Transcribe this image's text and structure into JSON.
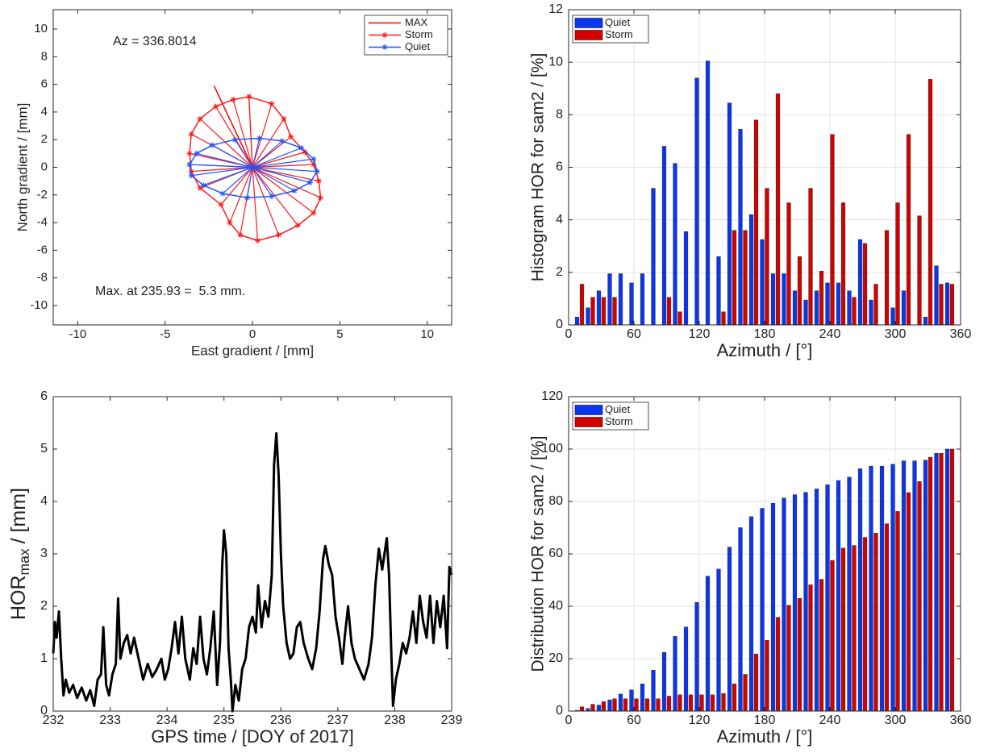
{
  "chart_data": [
    {
      "type": "line",
      "xlabel": "East gradient / [mm]",
      "ylabel": "North gradient / [mm]",
      "annotations": [
        "Az = 336.8014",
        "Max. at 235.93 =  5.3 mm."
      ],
      "xlim": [
        -11.4,
        11.4
      ],
      "ylim": [
        -11.4,
        11.4
      ],
      "xticks": [
        -10,
        -5,
        0,
        5,
        10
      ],
      "yticks": [
        -10,
        -8,
        -6,
        -4,
        -2,
        0,
        2,
        4,
        6,
        8,
        10
      ],
      "grid": false,
      "legend": "northeast",
      "spokes": true,
      "series": [
        {
          "name": "MAX",
          "color": "#ff0000",
          "x": [
            0,
            -2.2
          ],
          "values": [
            0,
            5.9
          ]
        },
        {
          "name": "Storm",
          "color": "#ff1a1a",
          "marker": "*",
          "x": [
            -0.2,
            1.1,
            1.8,
            2.2,
            3.0,
            3.5,
            3.8,
            3.9,
            3.5,
            2.6,
            1.5,
            0.3,
            -0.7,
            -1.3,
            -1.8,
            -3.0,
            -3.5,
            -3.6,
            -3.5,
            -3.0,
            -2.1,
            -1.1,
            -0.2
          ],
          "values": [
            5.1,
            4.6,
            3.5,
            2.2,
            1.1,
            0.2,
            -1.0,
            -2.2,
            -3.3,
            -4.2,
            -4.9,
            -5.3,
            -4.9,
            -4.0,
            -2.7,
            -1.5,
            -0.3,
            1.0,
            2.4,
            3.5,
            4.4,
            4.9,
            5.1
          ]
        },
        {
          "name": "Quiet",
          "color": "#1f55ff",
          "marker": "*",
          "x": [
            -3.6,
            -3.2,
            -2.3,
            -1.0,
            0.4,
            1.7,
            2.8,
            3.5,
            3.7,
            3.3,
            2.4,
            1.1,
            -0.3,
            -1.7,
            -2.8,
            -3.5,
            -3.6
          ],
          "values": [
            0.2,
            1.0,
            1.6,
            2.0,
            2.1,
            1.9,
            1.4,
            0.6,
            -0.3,
            -1.1,
            -1.7,
            -2.1,
            -2.2,
            -1.9,
            -1.3,
            -0.6,
            0.2
          ]
        }
      ]
    },
    {
      "type": "bar",
      "xlabel": "Azimuth / [°]",
      "ylabel": "Histogram HOR for sam2 / [%]",
      "xlim": [
        0,
        360
      ],
      "ylim": [
        0,
        12
      ],
      "xticks": [
        0,
        60,
        120,
        180,
        240,
        300,
        360
      ],
      "yticks": [
        0,
        2,
        4,
        6,
        8,
        10,
        12
      ],
      "grid": true,
      "legend": "northwest",
      "x": [
        10,
        20,
        30,
        40,
        50,
        60,
        70,
        80,
        90,
        100,
        110,
        120,
        130,
        140,
        150,
        160,
        170,
        180,
        190,
        200,
        210,
        220,
        230,
        240,
        250,
        260,
        270,
        280,
        290,
        300,
        310,
        320,
        330,
        340,
        350
      ],
      "series": [
        {
          "name": "Quiet",
          "color": "#0a36f0",
          "values": [
            0.3,
            0.65,
            1.3,
            1.95,
            1.95,
            1.6,
            1.95,
            5.2,
            6.8,
            6.15,
            3.55,
            9.4,
            10.05,
            2.6,
            8.45,
            7.45,
            4.2,
            3.25,
            1.95,
            1.95,
            1.3,
            0.95,
            1.3,
            1.6,
            1.6,
            1.3,
            3.25,
            0.95,
            0,
            0.65,
            1.3,
            0,
            0.3,
            2.25,
            1.6
          ]
        },
        {
          "name": "Storm",
          "color": "#d40000",
          "values": [
            1.55,
            1.05,
            1.05,
            1.05,
            0,
            0,
            0,
            0,
            1.05,
            0.5,
            0,
            0,
            0,
            0.5,
            3.6,
            3.6,
            7.8,
            5.2,
            8.8,
            4.65,
            2.6,
            5.2,
            2.05,
            7.25,
            4.65,
            1.05,
            3.1,
            1.55,
            3.6,
            4.65,
            7.25,
            4.15,
            9.35,
            1.55,
            1.55
          ]
        }
      ]
    },
    {
      "type": "line",
      "xlabel": "GPS time / [DOY of 2017]",
      "ylabel": {
        "main": "HOR",
        "sub": "max",
        "rest": "/ [mm]"
      },
      "xlim": [
        232,
        239
      ],
      "ylim": [
        0,
        6
      ],
      "xticks": [
        232,
        233,
        234,
        235,
        236,
        237,
        238,
        239
      ],
      "yticks": [
        0,
        1,
        2,
        3,
        4,
        5,
        6
      ],
      "grid": false,
      "x": [
        232.0,
        232.03,
        232.06,
        232.1,
        232.14,
        232.18,
        232.22,
        232.28,
        232.35,
        232.42,
        232.5,
        232.58,
        232.65,
        232.72,
        232.78,
        232.84,
        232.88,
        232.93,
        232.98,
        233.04,
        233.1,
        233.14,
        233.18,
        233.24,
        233.3,
        233.36,
        233.42,
        233.5,
        233.58,
        233.66,
        233.74,
        233.82,
        233.9,
        233.96,
        234.02,
        234.08,
        234.14,
        234.2,
        234.26,
        234.32,
        234.4,
        234.46,
        234.52,
        234.58,
        234.64,
        234.7,
        234.76,
        234.82,
        234.88,
        234.93,
        234.97,
        235.0,
        235.04,
        235.08,
        235.12,
        235.15,
        235.2,
        235.26,
        235.32,
        235.38,
        235.44,
        235.5,
        235.56,
        235.6,
        235.66,
        235.72,
        235.78,
        235.84,
        235.88,
        235.92,
        235.96,
        236.0,
        236.04,
        236.1,
        236.16,
        236.22,
        236.28,
        236.34,
        236.4,
        236.48,
        236.55,
        236.62,
        236.68,
        236.74,
        236.78,
        236.84,
        236.9,
        236.96,
        237.02,
        237.08,
        237.12,
        237.18,
        237.24,
        237.3,
        237.38,
        237.46,
        237.54,
        237.6,
        237.66,
        237.72,
        237.78,
        237.86,
        237.9,
        237.94,
        237.97,
        238.02,
        238.08,
        238.14,
        238.2,
        238.26,
        238.32,
        238.38,
        238.44,
        238.5,
        238.56,
        238.62,
        238.68,
        238.74,
        238.8,
        238.86,
        238.92,
        238.96,
        239.0
      ],
      "series": [
        {
          "color": "#000000",
          "values": [
            1.1,
            1.7,
            1.4,
            1.9,
            1.0,
            0.3,
            0.6,
            0.35,
            0.5,
            0.25,
            0.45,
            0.2,
            0.4,
            0.1,
            0.6,
            0.7,
            1.6,
            0.5,
            0.3,
            0.7,
            0.9,
            2.15,
            1.0,
            1.3,
            1.45,
            1.1,
            1.4,
            1.0,
            0.6,
            0.9,
            0.65,
            0.8,
            1.0,
            0.6,
            0.8,
            1.2,
            1.7,
            1.1,
            1.8,
            1.0,
            0.6,
            1.2,
            0.9,
            1.8,
            1.0,
            0.7,
            1.2,
            1.9,
            0.5,
            1.3,
            2.8,
            3.45,
            3.0,
            1.2,
            0.6,
            0.0,
            0.5,
            0.2,
            0.8,
            1.0,
            1.6,
            1.8,
            1.5,
            2.4,
            1.6,
            2.1,
            1.8,
            2.6,
            4.7,
            5.3,
            4.5,
            3.0,
            2.0,
            1.3,
            1.0,
            1.1,
            1.6,
            1.7,
            1.3,
            1.0,
            0.8,
            1.2,
            1.9,
            2.9,
            3.15,
            2.8,
            2.6,
            1.8,
            1.4,
            0.9,
            1.4,
            2.0,
            1.3,
            1.0,
            0.8,
            0.6,
            0.9,
            1.4,
            2.4,
            3.1,
            2.7,
            3.3,
            2.6,
            1.1,
            0.1,
            0.6,
            0.9,
            1.3,
            1.1,
            1.4,
            1.9,
            1.3,
            2.2,
            1.7,
            1.4,
            2.2,
            1.3,
            2.1,
            1.6,
            2.2,
            1.2,
            2.75,
            2.6
          ]
        }
      ]
    },
    {
      "type": "bar",
      "xlabel": "Azimuth / [°]",
      "ylabel": "Distribution HOR for sam2 / [%]",
      "xlim": [
        0,
        360
      ],
      "ylim": [
        0,
        120
      ],
      "xticks": [
        0,
        60,
        120,
        180,
        240,
        300,
        360
      ],
      "yticks": [
        0,
        20,
        40,
        60,
        80,
        100,
        120
      ],
      "grid": true,
      "legend": "northwest",
      "x": [
        10,
        20,
        30,
        40,
        50,
        60,
        70,
        80,
        90,
        100,
        110,
        120,
        130,
        140,
        150,
        160,
        170,
        180,
        190,
        200,
        210,
        220,
        230,
        240,
        250,
        260,
        270,
        280,
        290,
        300,
        310,
        320,
        330,
        340,
        350
      ],
      "series": [
        {
          "name": "Quiet",
          "color": "#0a36f0",
          "values": [
            0.3,
            1.0,
            2.3,
            4.3,
            6.5,
            8.1,
            10.4,
            15.6,
            22.4,
            28.5,
            32.1,
            41.5,
            51.5,
            54.2,
            62.6,
            70,
            74.2,
            77.4,
            79.3,
            81.3,
            82.6,
            83.5,
            84.8,
            86.4,
            88,
            89.3,
            92.5,
            93.5,
            93.5,
            94.2,
            95.5,
            95.5,
            95.8,
            98.4,
            100
          ]
        },
        {
          "name": "Storm",
          "color": "#d40000",
          "values": [
            1.6,
            2.6,
            3.6,
            4.7,
            4.7,
            4.7,
            4.7,
            4.7,
            5.7,
            6.2,
            6.2,
            6.2,
            6.2,
            6.7,
            10.4,
            14,
            21.8,
            27,
            35.8,
            40.4,
            43,
            48.2,
            50.3,
            57.5,
            62.2,
            63.2,
            66.3,
            67.9,
            71.5,
            76.2,
            83.4,
            87.6,
            96.9,
            98.4,
            100
          ]
        }
      ]
    }
  ]
}
